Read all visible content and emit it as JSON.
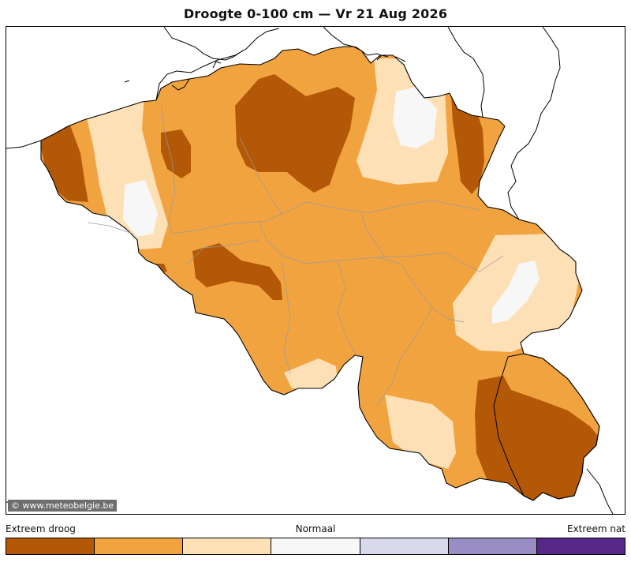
{
  "title": "Droogte 0-100 cm  —  Vr 21 Aug 2026",
  "credit": "© www.meteobelgie.be",
  "legend": {
    "left_label": "Extreem droog",
    "mid_label": "Normaal",
    "right_label": "Extreem nat",
    "classes": [
      {
        "color": "#b35806"
      },
      {
        "color": "#f1a340"
      },
      {
        "color": "#fee0b6"
      },
      {
        "color": "#f7f7f7"
      },
      {
        "color": "#d8daeb"
      },
      {
        "color": "#998ec3"
      },
      {
        "color": "#542788"
      }
    ]
  }
}
